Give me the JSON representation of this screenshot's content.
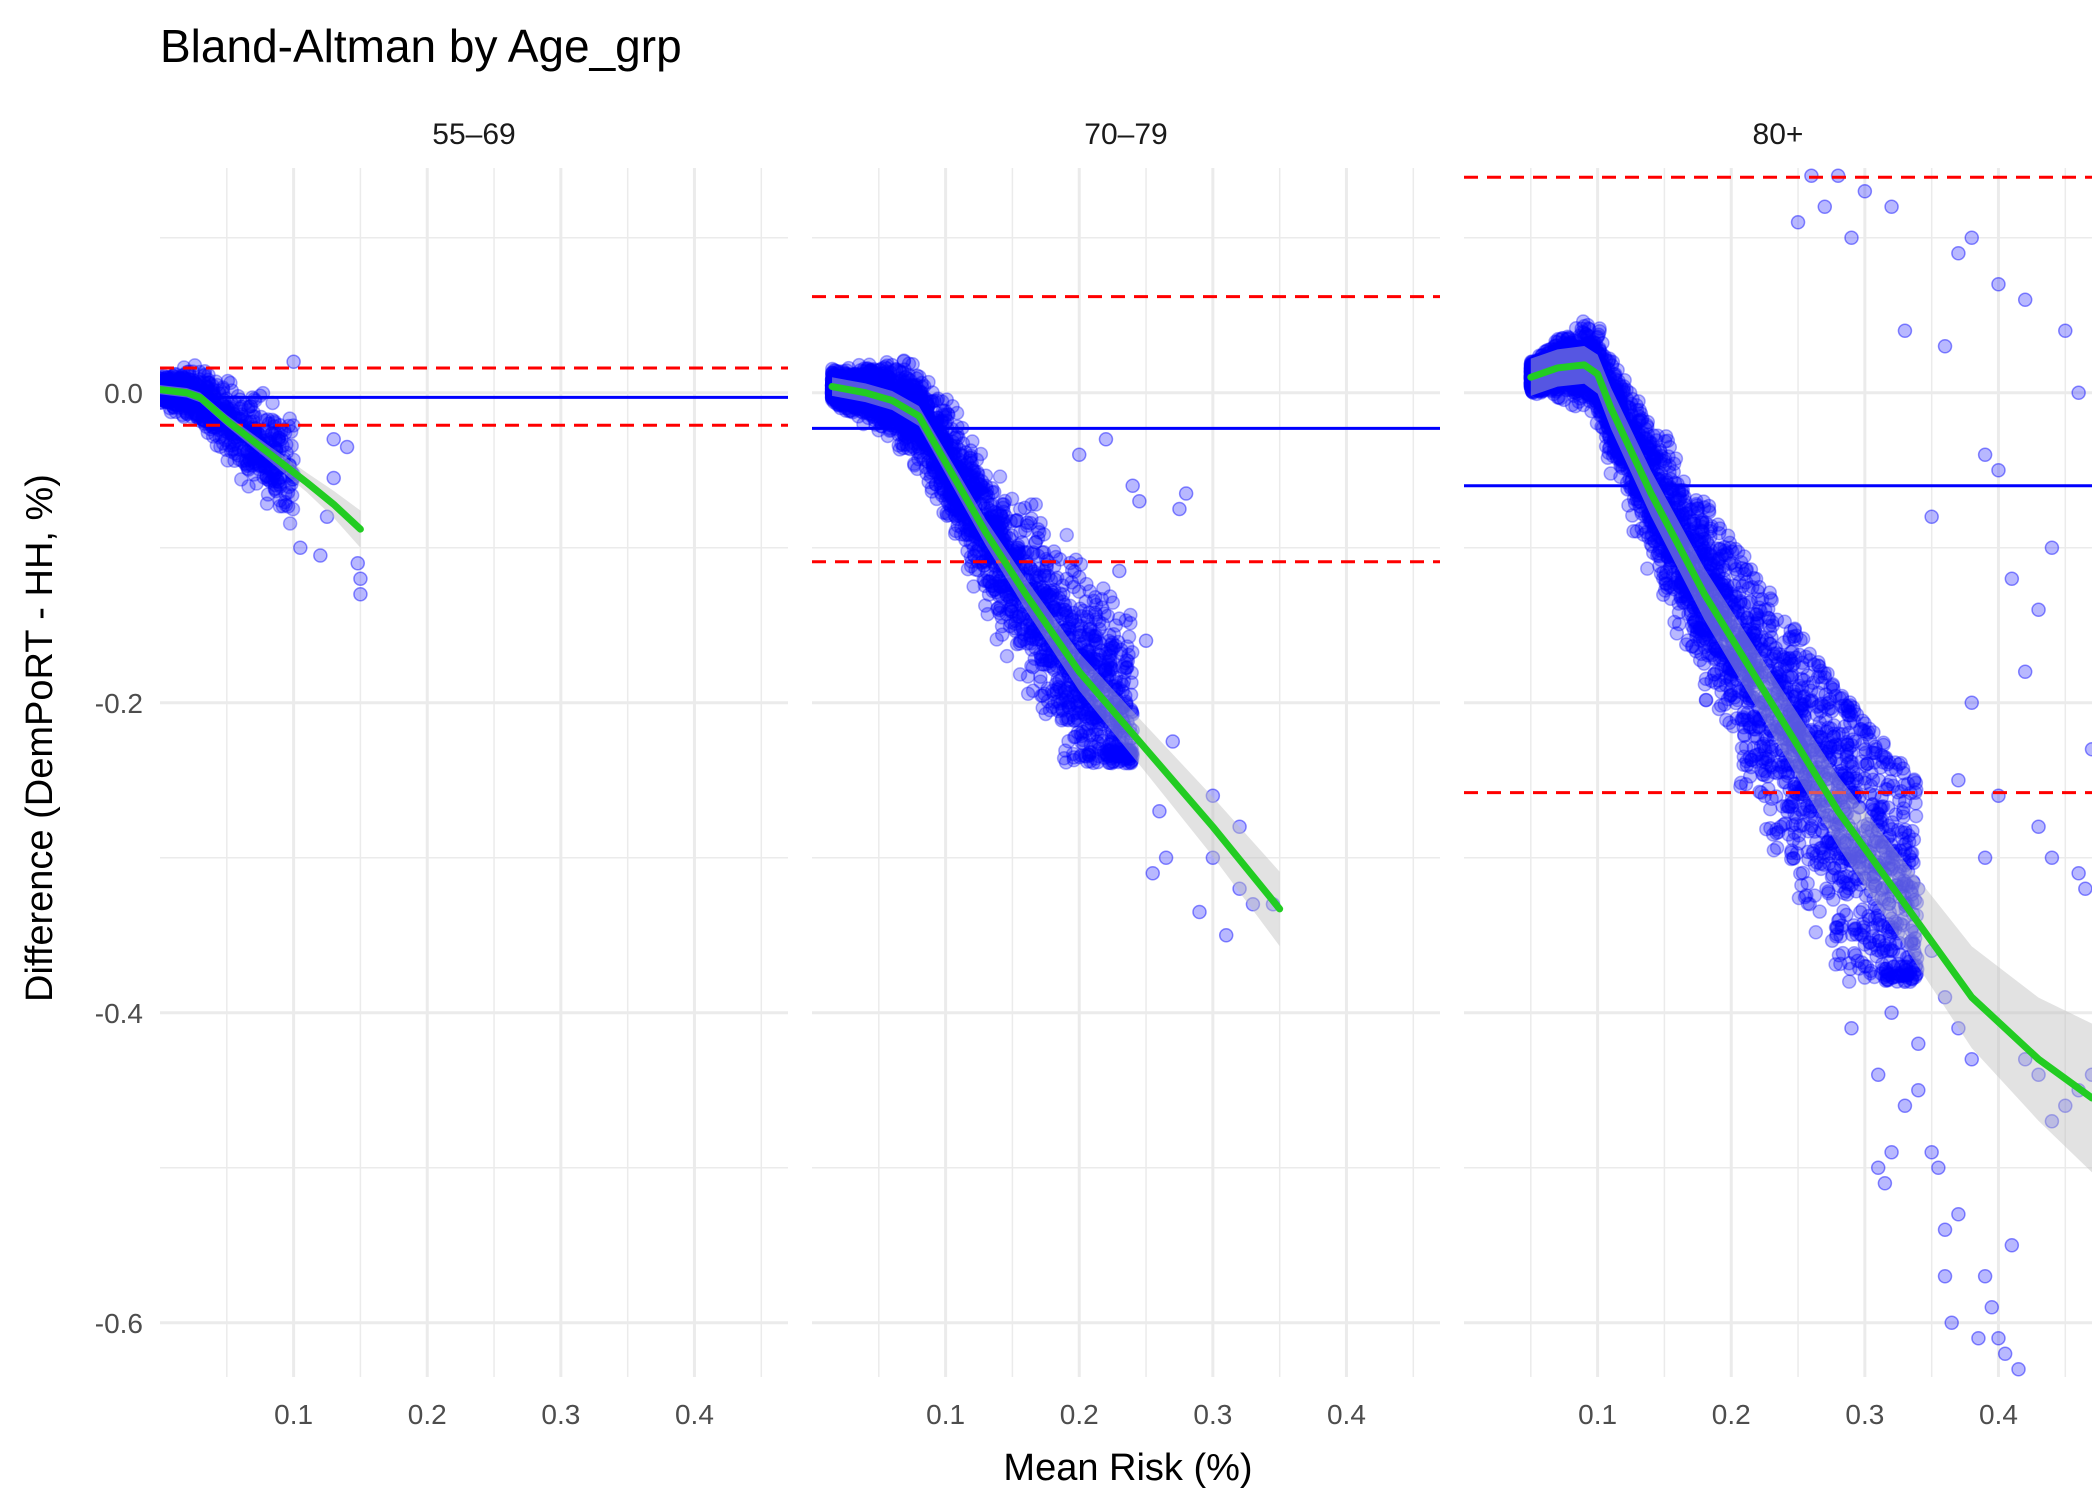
{
  "chart_data": {
    "type": "scatter",
    "title": "Bland-Altman by Age_grp",
    "xlabel": "Mean Risk (%)",
    "ylabel": "Difference (DemPoRT - HH, %)",
    "xlim": [
      0.0,
      0.47
    ],
    "ylim": [
      -0.635,
      0.145
    ],
    "x_ticks": [
      0.1,
      0.2,
      0.3,
      0.4
    ],
    "x_tick_labels": [
      "0.1",
      "0.2",
      "0.3",
      "0.4"
    ],
    "y_ticks": [
      0.0,
      -0.2,
      -0.4,
      -0.6
    ],
    "y_tick_labels": [
      "0.0",
      "-0.2",
      "-0.4",
      "-0.6"
    ],
    "grid": true,
    "colors": {
      "points": "#0000ff",
      "mean_line": "#0000ff",
      "limits": "#ff0000",
      "smooth": "#22cc22",
      "ribbon": "#bebebe",
      "grid": "#ebebeb"
    },
    "panels": [
      {
        "label": "55–69",
        "mean_diff": -0.003,
        "loa_upper": 0.016,
        "loa_lower": -0.021,
        "cloud_x": [
          0.0,
          0.1
        ],
        "cloud_band": [
          -0.095,
          0.03
        ],
        "n_points": 900,
        "outliers": [
          [
            0.13,
            -0.03
          ],
          [
            0.14,
            -0.035
          ],
          [
            0.125,
            -0.08
          ],
          [
            0.105,
            -0.1
          ],
          [
            0.12,
            -0.105
          ],
          [
            0.15,
            -0.13
          ],
          [
            0.15,
            -0.12
          ],
          [
            0.148,
            -0.11
          ],
          [
            0.1,
            0.02
          ],
          [
            0.13,
            -0.055
          ]
        ],
        "smooth": [
          [
            0.0,
            0.002
          ],
          [
            0.02,
            0.0
          ],
          [
            0.03,
            -0.003
          ],
          [
            0.05,
            -0.018
          ],
          [
            0.08,
            -0.038
          ],
          [
            0.11,
            -0.058
          ],
          [
            0.13,
            -0.072
          ],
          [
            0.15,
            -0.088
          ]
        ],
        "smooth_se": 0.003
      },
      {
        "label": "70–79",
        "mean_diff": -0.023,
        "loa_upper": 0.062,
        "loa_lower": -0.109,
        "cloud_x": [
          0.015,
          0.24
        ],
        "cloud_band": [
          -0.24,
          0.055
        ],
        "n_points": 3200,
        "outliers": [
          [
            0.27,
            -0.225
          ],
          [
            0.26,
            -0.27
          ],
          [
            0.28,
            -0.065
          ],
          [
            0.275,
            -0.075
          ],
          [
            0.3,
            -0.3
          ],
          [
            0.31,
            -0.35
          ],
          [
            0.32,
            -0.28
          ],
          [
            0.33,
            -0.33
          ],
          [
            0.255,
            -0.31
          ],
          [
            0.29,
            -0.335
          ],
          [
            0.24,
            -0.06
          ],
          [
            0.23,
            -0.115
          ],
          [
            0.25,
            -0.16
          ],
          [
            0.32,
            -0.32
          ],
          [
            0.345,
            -0.33
          ],
          [
            0.265,
            -0.3
          ],
          [
            0.3,
            -0.26
          ],
          [
            0.22,
            -0.03
          ],
          [
            0.245,
            -0.07
          ],
          [
            0.2,
            -0.04
          ]
        ],
        "smooth": [
          [
            0.015,
            0.004
          ],
          [
            0.04,
            0.0
          ],
          [
            0.06,
            -0.005
          ],
          [
            0.08,
            -0.015
          ],
          [
            0.1,
            -0.045
          ],
          [
            0.13,
            -0.09
          ],
          [
            0.16,
            -0.13
          ],
          [
            0.2,
            -0.18
          ],
          [
            0.25,
            -0.23
          ],
          [
            0.3,
            -0.28
          ],
          [
            0.35,
            -0.333
          ]
        ],
        "smooth_se": 0.006
      },
      {
        "label": "80+",
        "mean_diff": -0.06,
        "loa_upper": 0.139,
        "loa_lower": -0.258,
        "cloud_x": [
          0.05,
          0.34
        ],
        "cloud_band": [
          -0.38,
          0.12
        ],
        "n_points": 4200,
        "outliers": [
          [
            0.31,
            -0.5
          ],
          [
            0.315,
            -0.51
          ],
          [
            0.32,
            -0.49
          ],
          [
            0.33,
            -0.46
          ],
          [
            0.34,
            -0.45
          ],
          [
            0.35,
            -0.49
          ],
          [
            0.355,
            -0.5
          ],
          [
            0.36,
            -0.54
          ],
          [
            0.36,
            -0.57
          ],
          [
            0.365,
            -0.6
          ],
          [
            0.37,
            -0.53
          ],
          [
            0.38,
            -0.64
          ],
          [
            0.385,
            -0.61
          ],
          [
            0.39,
            -0.57
          ],
          [
            0.395,
            -0.59
          ],
          [
            0.4,
            -0.61
          ],
          [
            0.405,
            -0.62
          ],
          [
            0.41,
            -0.55
          ],
          [
            0.415,
            -0.63
          ],
          [
            0.42,
            -0.43
          ],
          [
            0.43,
            -0.44
          ],
          [
            0.44,
            -0.47
          ],
          [
            0.45,
            -0.46
          ],
          [
            0.46,
            -0.45
          ],
          [
            0.47,
            -0.44
          ],
          [
            0.38,
            -0.2
          ],
          [
            0.4,
            -0.26
          ],
          [
            0.42,
            -0.18
          ],
          [
            0.43,
            -0.28
          ],
          [
            0.44,
            -0.3
          ],
          [
            0.46,
            -0.31
          ],
          [
            0.47,
            -0.23
          ],
          [
            0.465,
            -0.32
          ],
          [
            0.37,
            -0.25
          ],
          [
            0.39,
            -0.3
          ],
          [
            0.35,
            -0.08
          ],
          [
            0.36,
            0.03
          ],
          [
            0.37,
            0.09
          ],
          [
            0.38,
            0.1
          ],
          [
            0.4,
            0.07
          ],
          [
            0.42,
            0.06
          ],
          [
            0.45,
            0.04
          ],
          [
            0.46,
            0.0
          ],
          [
            0.44,
            -0.1
          ],
          [
            0.43,
            -0.14
          ],
          [
            0.41,
            -0.12
          ],
          [
            0.4,
            -0.05
          ],
          [
            0.39,
            -0.04
          ],
          [
            0.33,
            0.04
          ],
          [
            0.32,
            0.12
          ],
          [
            0.3,
            0.13
          ],
          [
            0.29,
            0.1
          ],
          [
            0.28,
            0.14
          ],
          [
            0.27,
            0.12
          ],
          [
            0.26,
            0.14
          ],
          [
            0.25,
            0.11
          ],
          [
            0.3,
            -0.37
          ],
          [
            0.32,
            -0.4
          ],
          [
            0.34,
            -0.42
          ],
          [
            0.29,
            -0.41
          ],
          [
            0.31,
            -0.44
          ],
          [
            0.33,
            -0.38
          ],
          [
            0.35,
            -0.36
          ],
          [
            0.36,
            -0.39
          ],
          [
            0.37,
            -0.41
          ],
          [
            0.38,
            -0.43
          ]
        ],
        "smooth": [
          [
            0.05,
            0.01
          ],
          [
            0.07,
            0.016
          ],
          [
            0.09,
            0.018
          ],
          [
            0.1,
            0.012
          ],
          [
            0.11,
            -0.01
          ],
          [
            0.14,
            -0.065
          ],
          [
            0.18,
            -0.13
          ],
          [
            0.23,
            -0.2
          ],
          [
            0.28,
            -0.27
          ],
          [
            0.33,
            -0.33
          ],
          [
            0.38,
            -0.39
          ],
          [
            0.43,
            -0.43
          ],
          [
            0.47,
            -0.455
          ]
        ],
        "smooth_se": 0.012
      }
    ]
  }
}
